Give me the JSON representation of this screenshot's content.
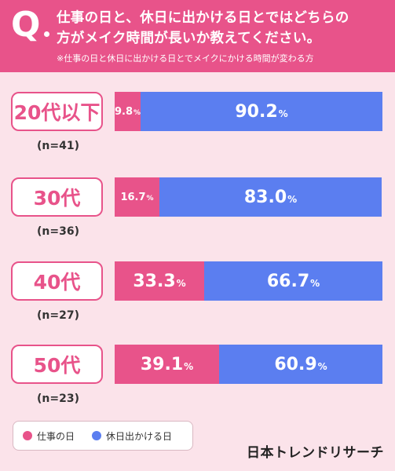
{
  "header": {
    "q_mark": "Q",
    "question_line1": "仕事の日と、休日に出かける日とではどちらの",
    "question_line2": "方がメイク時間が長いか教えてください。",
    "note": "※仕事の日と休日に出かける日とでメイクにかける時間が変わる方"
  },
  "colors": {
    "work": "#e8538a",
    "holiday": "#5b7ef0",
    "background": "#fbe3ea"
  },
  "chart_data": {
    "type": "bar",
    "stacked": true,
    "orientation": "horizontal",
    "categories": [
      "20代以下",
      "30代",
      "40代",
      "50代"
    ],
    "sample_sizes": [
      "(n=41)",
      "(n=36)",
      "(n=27)",
      "(n=23)"
    ],
    "series": [
      {
        "name": "仕事の日",
        "values": [
          9.8,
          16.7,
          33.3,
          39.1
        ],
        "labels": [
          "9.8",
          "16.7",
          "33.3",
          "39.1"
        ]
      },
      {
        "name": "休日出かける日",
        "values": [
          90.2,
          83.0,
          66.7,
          60.9
        ],
        "labels": [
          "90.2",
          "83.0",
          "66.7",
          "60.9"
        ]
      }
    ],
    "unit": "%",
    "xlim": [
      0,
      100
    ]
  },
  "legend": {
    "items": [
      "仕事の日",
      "休日出かける日"
    ]
  },
  "brand": "日本トレンドリサーチ"
}
